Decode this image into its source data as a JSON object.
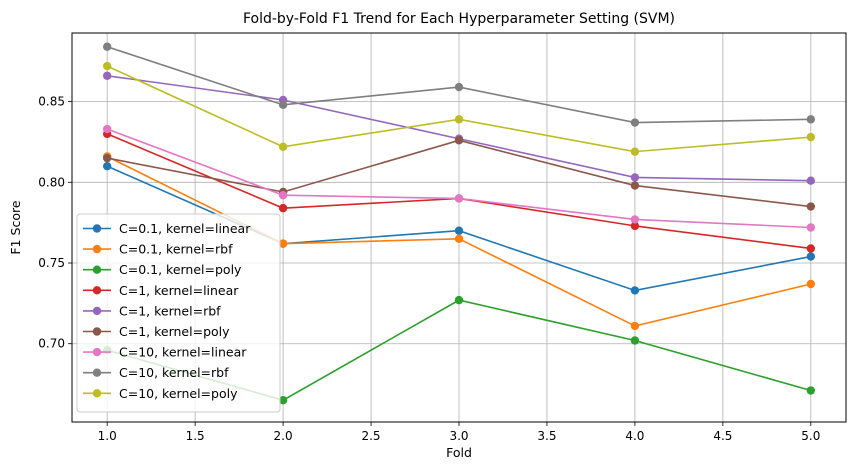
{
  "chart_data": {
    "type": "line",
    "title": "Fold-by-Fold F1 Trend for Each Hyperparameter Setting (SVM)",
    "xlabel": "Fold",
    "ylabel": "F1 Score",
    "xlim": [
      0.8,
      5.2
    ],
    "ylim": [
      0.6515,
      0.8925
    ],
    "xticks": [
      1.0,
      1.5,
      2.0,
      2.5,
      3.0,
      3.5,
      4.0,
      4.5,
      5.0
    ],
    "yticks": [
      0.7,
      0.75,
      0.8,
      0.85
    ],
    "xtick_labels": [
      "1.0",
      "1.5",
      "2.0",
      "2.5",
      "3.0",
      "3.5",
      "4.0",
      "4.5",
      "5.0"
    ],
    "ytick_labels": [
      "0.70",
      "0.75",
      "0.80",
      "0.85"
    ],
    "grid": true,
    "legend_position": "lower-left",
    "x": [
      1,
      2,
      3,
      4,
      5
    ],
    "series": [
      {
        "name": "C=0.1, kernel=linear",
        "color": "#1f77b4",
        "values": [
          0.81,
          0.762,
          0.77,
          0.733,
          0.754
        ]
      },
      {
        "name": "C=0.1, kernel=rbf",
        "color": "#ff7f0e",
        "values": [
          0.816,
          0.762,
          0.765,
          0.711,
          0.737
        ]
      },
      {
        "name": "C=0.1, kernel=poly",
        "color": "#2ca02c",
        "values": [
          0.696,
          0.665,
          0.727,
          0.702,
          0.671
        ]
      },
      {
        "name": "C=1, kernel=linear",
        "color": "#d62728",
        "values": [
          0.83,
          0.784,
          0.79,
          0.773,
          0.759
        ]
      },
      {
        "name": "C=1, kernel=rbf",
        "color": "#9467bd",
        "values": [
          0.866,
          0.851,
          0.827,
          0.803,
          0.801
        ]
      },
      {
        "name": "C=1, kernel=poly",
        "color": "#8c564b",
        "values": [
          0.815,
          0.794,
          0.826,
          0.798,
          0.785
        ]
      },
      {
        "name": "C=10, kernel=linear",
        "color": "#e377c2",
        "values": [
          0.833,
          0.792,
          0.79,
          0.777,
          0.772
        ]
      },
      {
        "name": "C=10, kernel=rbf",
        "color": "#7f7f7f",
        "values": [
          0.884,
          0.848,
          0.859,
          0.837,
          0.839
        ]
      },
      {
        "name": "C=10, kernel=poly",
        "color": "#bcbd22",
        "values": [
          0.872,
          0.822,
          0.839,
          0.819,
          0.828
        ]
      }
    ]
  }
}
